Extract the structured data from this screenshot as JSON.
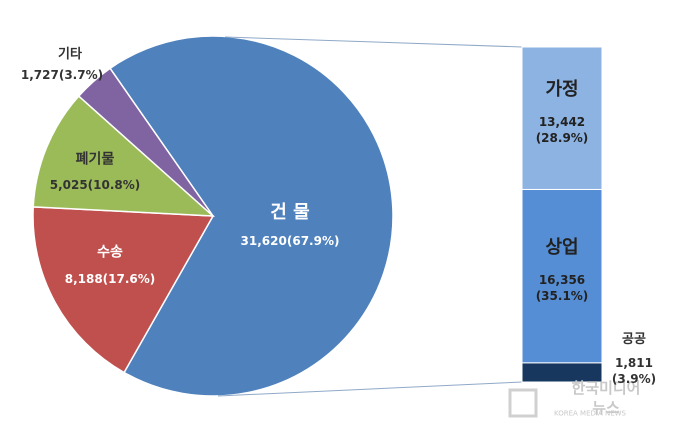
{
  "chart_data": [
    {
      "type": "pie",
      "categories": [
        "건 물",
        "수송",
        "폐기물",
        "기타"
      ],
      "values": [
        31620,
        8188,
        5025,
        1727
      ],
      "value_labels": [
        "31,620(67.9%)",
        "8,188(17.6%)",
        "5,025(10.8%)",
        "1,727(3.7%)"
      ],
      "colors": [
        "#4f81bd",
        "#c0504d",
        "#9bbb59",
        "#8064a2"
      ]
    },
    {
      "type": "bar",
      "stacked": true,
      "series": [
        {
          "name": "공공",
          "color": "#17375e",
          "values": [
            1811
          ],
          "value_labels": [
            "1,811\n(3.9%)"
          ]
        },
        {
          "name": "상업",
          "color": "#558ed5",
          "values": [
            16356
          ],
          "value_labels": [
            "16,356\n(35.1%)"
          ]
        },
        {
          "name": "가정",
          "color": "#8db3e2",
          "values": [
            13442
          ],
          "value_labels": [
            "13,442\n(28.9%)"
          ]
        }
      ]
    }
  ],
  "watermark": {
    "title": "한국미디어뉴스",
    "subtitle": "KOREA MEDIA NEWS"
  }
}
